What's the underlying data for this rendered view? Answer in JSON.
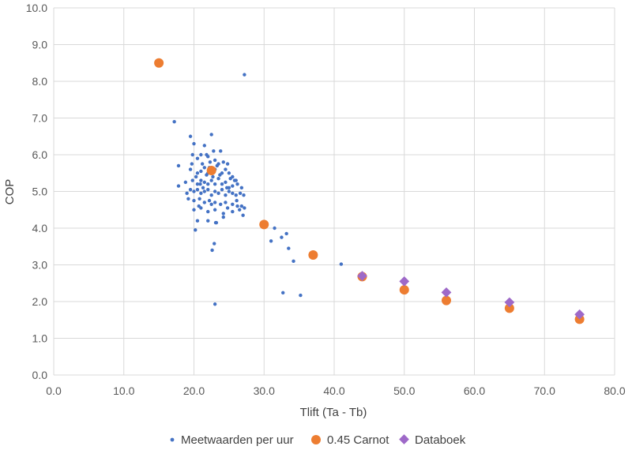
{
  "chart_data": {
    "type": "scatter",
    "xlabel": "Tlift (Ta - Tb)",
    "ylabel": "COP",
    "xlim": [
      0,
      80
    ],
    "ylim": [
      0,
      10
    ],
    "x_ticks": [
      "0.0",
      "10.0",
      "20.0",
      "30.0",
      "40.0",
      "50.0",
      "60.0",
      "70.0",
      "80.0"
    ],
    "y_ticks": [
      "0.0",
      "1.0",
      "2.0",
      "3.0",
      "4.0",
      "5.0",
      "6.0",
      "7.0",
      "8.0",
      "9.0",
      "10.0"
    ],
    "grid": true,
    "legend_position": "bottom",
    "series": [
      {
        "name": "Meetwaarden per uur",
        "marker": "circle-small",
        "color": "#4472C4",
        "points": [
          [
            17.2,
            6.9
          ],
          [
            19.5,
            6.5
          ],
          [
            22.5,
            6.55
          ],
          [
            20.0,
            6.3
          ],
          [
            21.5,
            6.25
          ],
          [
            27.2,
            8.18
          ],
          [
            19.8,
            6.0
          ],
          [
            21.0,
            6.0
          ],
          [
            21.8,
            6.0
          ],
          [
            22.8,
            6.1
          ],
          [
            23.8,
            6.1
          ],
          [
            20.5,
            5.9
          ],
          [
            22.0,
            5.95
          ],
          [
            24.2,
            5.8
          ],
          [
            23.0,
            5.85
          ],
          [
            17.8,
            5.7
          ],
          [
            19.5,
            5.6
          ],
          [
            20.5,
            5.5
          ],
          [
            21.0,
            5.55
          ],
          [
            21.5,
            5.65
          ],
          [
            22.0,
            5.5
          ],
          [
            23.0,
            5.6
          ],
          [
            24.0,
            5.5
          ],
          [
            24.5,
            5.6
          ],
          [
            25.0,
            5.5
          ],
          [
            25.5,
            5.4
          ],
          [
            26.0,
            5.3
          ],
          [
            19.8,
            5.3
          ],
          [
            20.5,
            5.2
          ],
          [
            21.0,
            5.3
          ],
          [
            21.5,
            5.25
          ],
          [
            22.0,
            5.2
          ],
          [
            22.5,
            5.3
          ],
          [
            23.0,
            5.2
          ],
          [
            23.5,
            5.35
          ],
          [
            24.0,
            5.2
          ],
          [
            24.5,
            5.25
          ],
          [
            25.0,
            5.1
          ],
          [
            25.5,
            5.15
          ],
          [
            26.2,
            5.2
          ],
          [
            26.8,
            5.1
          ],
          [
            17.8,
            5.15
          ],
          [
            18.8,
            5.25
          ],
          [
            19.5,
            5.05
          ],
          [
            20.0,
            5.0
          ],
          [
            20.5,
            5.05
          ],
          [
            21.0,
            4.95
          ],
          [
            21.5,
            5.0
          ],
          [
            22.0,
            5.05
          ],
          [
            22.5,
            4.9
          ],
          [
            23.0,
            5.0
          ],
          [
            23.5,
            4.95
          ],
          [
            24.0,
            5.05
          ],
          [
            24.5,
            4.9
          ],
          [
            25.0,
            5.0
          ],
          [
            25.5,
            4.95
          ],
          [
            26.0,
            4.9
          ],
          [
            26.6,
            4.95
          ],
          [
            27.1,
            4.9
          ],
          [
            19.2,
            4.8
          ],
          [
            20.0,
            4.75
          ],
          [
            20.8,
            4.8
          ],
          [
            21.5,
            4.7
          ],
          [
            22.2,
            4.75
          ],
          [
            23.0,
            4.7
          ],
          [
            23.8,
            4.65
          ],
          [
            24.5,
            4.7
          ],
          [
            25.5,
            4.65
          ],
          [
            26.2,
            4.6
          ],
          [
            26.8,
            4.6
          ],
          [
            27.2,
            4.55
          ],
          [
            20.0,
            4.5
          ],
          [
            21.0,
            4.55
          ],
          [
            22.0,
            4.45
          ],
          [
            23.0,
            4.5
          ],
          [
            24.2,
            4.4
          ],
          [
            25.5,
            4.45
          ],
          [
            26.5,
            4.5
          ],
          [
            27.0,
            4.35
          ],
          [
            20.5,
            4.2
          ],
          [
            22.0,
            4.2
          ],
          [
            23.2,
            4.15
          ],
          [
            24.2,
            4.3
          ],
          [
            20.2,
            3.95
          ],
          [
            23.1,
            4.15
          ],
          [
            22.9,
            3.58
          ],
          [
            22.6,
            3.4
          ],
          [
            23.0,
            1.93
          ],
          [
            31.0,
            3.65
          ],
          [
            31.5,
            4.0
          ],
          [
            32.5,
            3.75
          ],
          [
            33.2,
            3.85
          ],
          [
            33.5,
            3.45
          ],
          [
            34.2,
            3.1
          ],
          [
            32.7,
            2.24
          ],
          [
            35.2,
            2.17
          ],
          [
            41.0,
            3.02
          ],
          [
            21.2,
            5.75
          ],
          [
            22.3,
            5.8
          ],
          [
            23.3,
            5.7
          ],
          [
            24.8,
            5.75
          ],
          [
            20.3,
            5.4
          ],
          [
            21.8,
            5.45
          ],
          [
            22.7,
            5.4
          ],
          [
            23.7,
            5.45
          ],
          [
            25.2,
            5.35
          ],
          [
            19.0,
            4.95
          ],
          [
            20.7,
            4.6
          ],
          [
            22.5,
            4.65
          ],
          [
            24.8,
            4.55
          ],
          [
            26.1,
            4.75
          ],
          [
            19.7,
            5.75
          ],
          [
            23.5,
            5.75
          ],
          [
            24.7,
            5.1
          ],
          [
            21.3,
            5.1
          ],
          [
            22.2,
            5.65
          ],
          [
            20.9,
            5.2
          ],
          [
            25.8,
            5.3
          ]
        ]
      },
      {
        "name": "0.45 Carnot",
        "marker": "circle-large",
        "color": "#ED7D31",
        "points": [
          [
            15,
            8.5
          ],
          [
            22.5,
            5.57
          ],
          [
            30,
            4.1
          ],
          [
            37,
            3.27
          ],
          [
            44,
            2.68
          ],
          [
            50,
            2.32
          ],
          [
            56,
            2.03
          ],
          [
            65,
            1.82
          ],
          [
            75,
            1.52
          ]
        ]
      },
      {
        "name": "Databoek",
        "marker": "diamond",
        "color": "#9E69C8",
        "points": [
          [
            44,
            2.7
          ],
          [
            50,
            2.55
          ],
          [
            56,
            2.25
          ],
          [
            65,
            1.98
          ],
          [
            75,
            1.65
          ]
        ]
      }
    ]
  }
}
